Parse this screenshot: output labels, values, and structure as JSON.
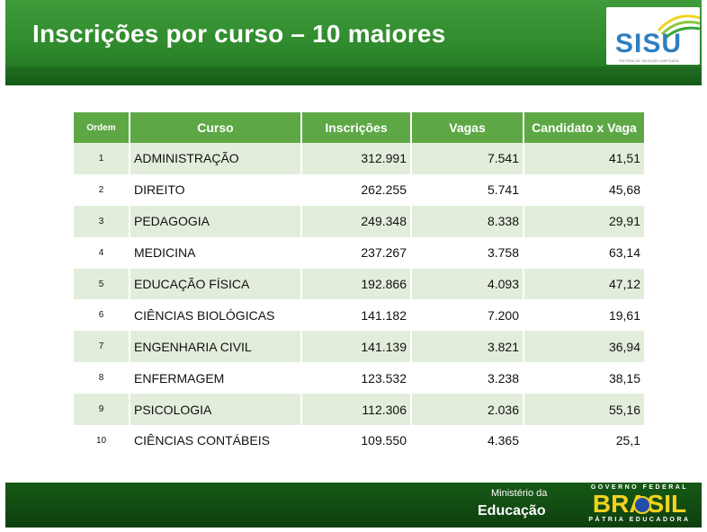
{
  "header": {
    "title": "Inscrições por curso – 10 maiores",
    "logo_text": "SISU",
    "logo_subtitle": "SISTEMA DE SELEÇÃO UNIFICADA"
  },
  "table": {
    "headers": {
      "ordem": "Ordem",
      "curso": "Curso",
      "inscricoes": "Inscrições",
      "vagas": "Vagas",
      "cxv": "Candidato x Vaga"
    },
    "rows": [
      {
        "ordem": "1",
        "curso": "ADMINISTRAÇÃO",
        "inscricoes": "312.991",
        "vagas": "7.541",
        "cxv": "41,51"
      },
      {
        "ordem": "2",
        "curso": "DIREITO",
        "inscricoes": "262.255",
        "vagas": "5.741",
        "cxv": "45,68"
      },
      {
        "ordem": "3",
        "curso": "PEDAGOGIA",
        "inscricoes": "249.348",
        "vagas": "8.338",
        "cxv": "29,91"
      },
      {
        "ordem": "4",
        "curso": "MEDICINA",
        "inscricoes": "237.267",
        "vagas": "3.758",
        "cxv": "63,14"
      },
      {
        "ordem": "5",
        "curso": "EDUCAÇÃO FÍSICA",
        "inscricoes": "192.866",
        "vagas": "4.093",
        "cxv": "47,12"
      },
      {
        "ordem": "6",
        "curso": "CIÊNCIAS BIOLÓGICAS",
        "inscricoes": "141.182",
        "vagas": "7.200",
        "cxv": "19,61"
      },
      {
        "ordem": "7",
        "curso": "ENGENHARIA CIVIL",
        "inscricoes": "141.139",
        "vagas": "3.821",
        "cxv": "36,94"
      },
      {
        "ordem": "8",
        "curso": "ENFERMAGEM",
        "inscricoes": "123.532",
        "vagas": "3.238",
        "cxv": "38,15"
      },
      {
        "ordem": "9",
        "curso": "PSICOLOGIA",
        "inscricoes": "112.306",
        "vagas": "2.036",
        "cxv": "55,16"
      },
      {
        "ordem": "10",
        "curso": "CIÊNCIAS CONTÁBEIS",
        "inscricoes": "109.550",
        "vagas": "4.365",
        "cxv": "25,1"
      }
    ]
  },
  "footer": {
    "ministerio": "Ministério da",
    "educacao": "Educação",
    "brasil_top": "GOVERNO FEDERAL",
    "brasil_word": "BRASIL",
    "brasil_bottom": "PÁTRIA EDUCADORA"
  },
  "colors": {
    "header_green": "#2e8a2c",
    "table_header": "#5da845",
    "row_stripe": "#e2eedb",
    "footer_green": "#0e3f0e",
    "brasil_yellow": "#f4d21f",
    "sisu_blue": "#2d7fc1"
  }
}
